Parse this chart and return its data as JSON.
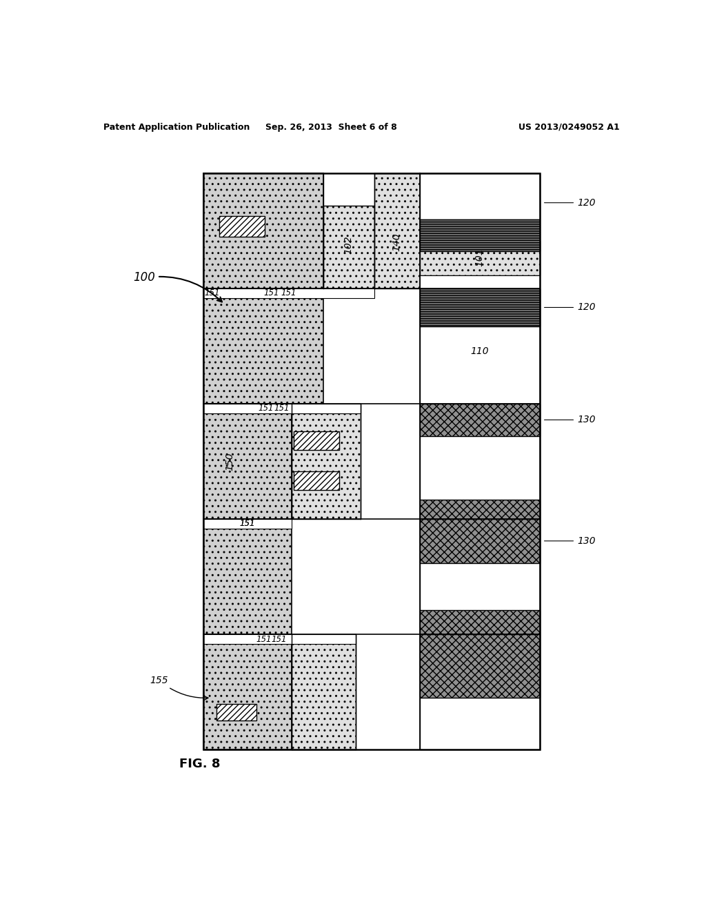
{
  "bg_color": "#ffffff",
  "header_left": "Patent Application Publication",
  "header_mid": "Sep. 26, 2013  Sheet 6 of 8",
  "header_right": "US 2013/0249052 A1",
  "fig_label": "FIG. 8",
  "ref_100": "100",
  "ref_101": "101",
  "ref_102": "102",
  "ref_110": "110",
  "ref_120": "120",
  "ref_130": "130",
  "ref_140": "140",
  "ref_150": "150",
  "ref_151": "151",
  "ref_155": "155",
  "dot_fc": "#d0d0d0",
  "dot2_fc": "#e0e0e0",
  "stripe_fc": "#888888",
  "wave_fc": "#b0b0b0",
  "white": "#ffffff",
  "outline": "#000000"
}
